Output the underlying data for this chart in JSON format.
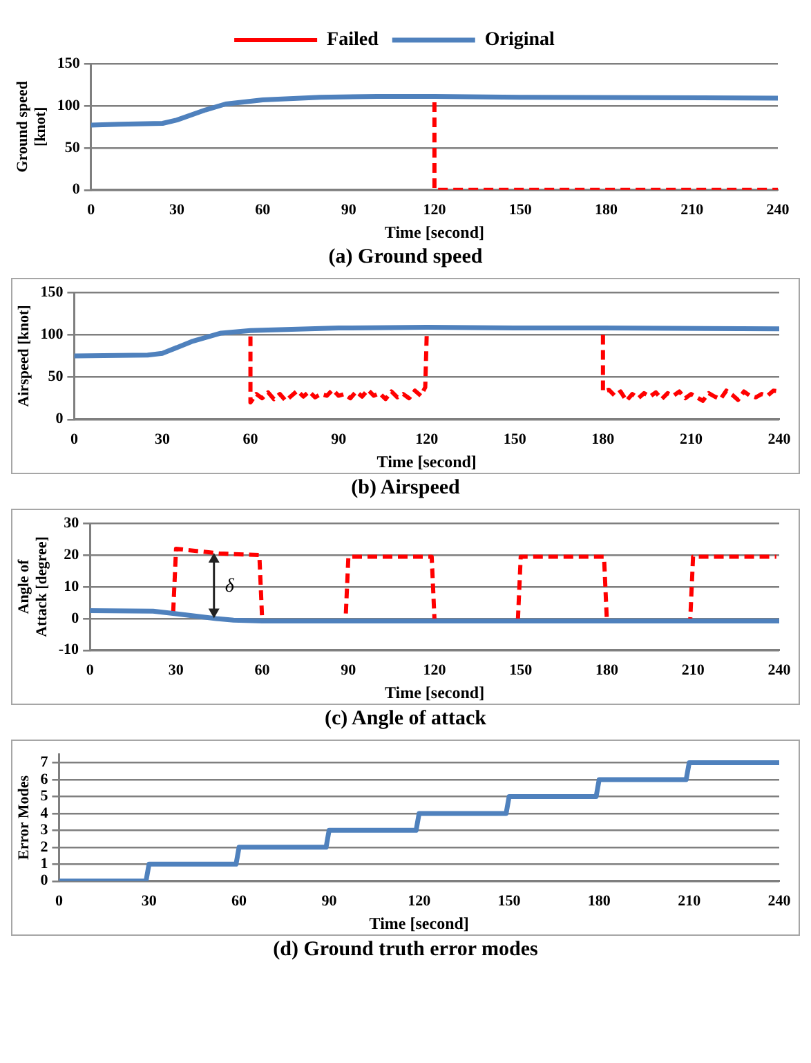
{
  "chart_data": [
    {
      "type": "line",
      "title": "(a) Ground speed",
      "xlabel": "Time [second]",
      "ylabel": "Ground speed [knot]",
      "xlim": [
        0,
        240
      ],
      "xticks": [
        0,
        30,
        60,
        90,
        120,
        150,
        180,
        210,
        240
      ],
      "ylim": [
        0,
        150
      ],
      "yticks": [
        0,
        50,
        100,
        150
      ],
      "grid": "y",
      "legend": "top",
      "marker": "none",
      "series": [
        {
          "name": "Failed",
          "color": "#ff0000",
          "line_style": "dashed",
          "x": [
            120,
            120,
            240
          ],
          "values": [
            104,
            0,
            0
          ]
        },
        {
          "name": "Original",
          "color": "#4f81bd",
          "line_style": "solid",
          "x": [
            0,
            10,
            25,
            30,
            40,
            47,
            60,
            80,
            100,
            120,
            150,
            240
          ],
          "values": [
            77,
            78,
            79,
            83,
            95,
            102,
            107,
            110,
            111,
            111,
            110,
            109
          ]
        }
      ]
    },
    {
      "type": "line",
      "title": "(b) Airspeed",
      "xlabel": "Time [second]",
      "ylabel": "Airspeed [knot]",
      "xlim": [
        0,
        240
      ],
      "xticks": [
        0,
        30,
        60,
        90,
        120,
        150,
        180,
        210,
        240
      ],
      "ylim": [
        0,
        150
      ],
      "yticks": [
        0,
        50,
        100,
        150
      ],
      "grid": "y",
      "marker": "none",
      "series": [
        {
          "color": "#ff0000",
          "line_style": "dashed",
          "x": [
            60,
            60,
            62,
            64,
            66,
            68,
            70,
            72,
            74,
            76,
            78,
            80,
            82,
            84,
            86,
            88,
            90,
            92,
            94,
            96,
            98,
            100,
            102,
            104,
            106,
            108,
            110,
            112,
            114,
            116,
            118,
            119.5,
            120,
            150,
            180,
            180,
            182,
            184,
            186,
            188,
            190,
            192,
            194,
            196,
            198,
            200,
            202,
            204,
            206,
            208,
            210,
            212,
            214,
            216,
            218,
            220,
            222,
            224,
            226,
            228,
            230,
            232,
            234,
            236,
            238,
            240
          ],
          "values": [
            98,
            20,
            30,
            25,
            32,
            24,
            30,
            22,
            28,
            34,
            27,
            33,
            26,
            30,
            28,
            35,
            28,
            30,
            25,
            33,
            27,
            35,
            28,
            31,
            24,
            33,
            26,
            30,
            25,
            34,
            28,
            38,
            100,
            null,
            100,
            33,
            35,
            28,
            33,
            22,
            30,
            25,
            31,
            27,
            32,
            24,
            31,
            28,
            33,
            25,
            30,
            26,
            22,
            31,
            27,
            24,
            34,
            29,
            23,
            33,
            28,
            26,
            30,
            28,
            34,
            33
          ]
        },
        {
          "color": "#4f81bd",
          "line_style": "solid",
          "x": [
            0,
            25,
            30,
            40,
            50,
            60,
            90,
            120,
            150,
            180,
            240
          ],
          "values": [
            75,
            76,
            78,
            92,
            102,
            105,
            108,
            109,
            108,
            108,
            107
          ]
        }
      ]
    },
    {
      "type": "line",
      "title": "(c) Angle of attack",
      "xlabel": "Time [second]",
      "ylabel": "Angle of Attack [degree]",
      "xlim": [
        0,
        240
      ],
      "xticks": [
        0,
        30,
        60,
        90,
        120,
        150,
        180,
        210,
        240
      ],
      "ylim": [
        -10,
        30
      ],
      "yticks": [
        -10,
        0,
        10,
        20,
        30
      ],
      "grid": "y",
      "marker": "none",
      "annotations": [
        "δ"
      ],
      "series": [
        {
          "color": "#ff0000",
          "line_style": "dashed",
          "x": [
            29,
            30,
            45,
            59,
            60,
            89,
            90,
            119,
            120,
            149,
            150,
            179,
            180,
            209,
            210,
            239
          ],
          "values": [
            2,
            22,
            20.5,
            20,
            -0.8,
            -0.8,
            19.5,
            19.5,
            -0.8,
            -0.8,
            19.5,
            19.5,
            -0.8,
            -0.8,
            19.5,
            19.5
          ]
        },
        {
          "color": "#4f81bd",
          "line_style": "solid",
          "x": [
            0,
            22,
            30,
            44,
            50,
            60,
            240
          ],
          "values": [
            2.5,
            2.3,
            1.5,
            0,
            -0.5,
            -0.8,
            -0.8
          ]
        }
      ]
    },
    {
      "type": "line",
      "title": "(d) Ground truth error modes",
      "xlabel": "Time [second]",
      "ylabel": "Error Modes",
      "xlim": [
        0,
        240
      ],
      "xticks": [
        0,
        30,
        60,
        90,
        120,
        150,
        180,
        210,
        240
      ],
      "ylim": [
        0,
        7.5
      ],
      "yticks": [
        0,
        1,
        2,
        3,
        4,
        5,
        6,
        7
      ],
      "grid": "y",
      "marker": "none",
      "series": [
        {
          "color": "#4f81bd",
          "line_style": "solid",
          "x": [
            0,
            29,
            30,
            59,
            60,
            89,
            90,
            119,
            120,
            149,
            150,
            179,
            180,
            209,
            210,
            240
          ],
          "values": [
            0,
            0,
            1,
            1,
            2,
            2,
            3,
            3,
            4,
            4,
            5,
            5,
            6,
            6,
            7,
            7
          ]
        }
      ]
    }
  ]
}
